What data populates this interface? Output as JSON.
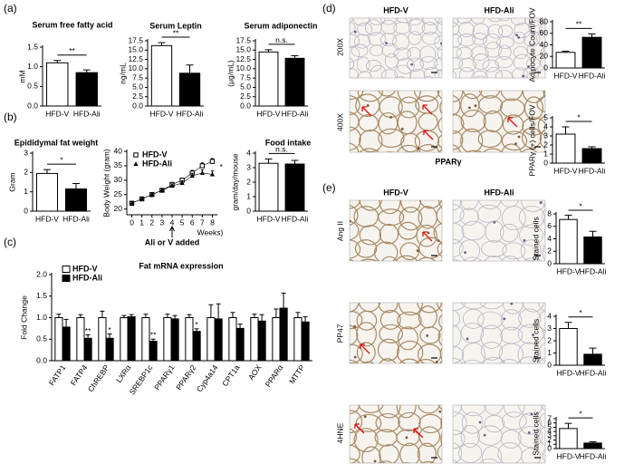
{
  "panel_labels": [
    "(a)",
    "(b)",
    "(c)",
    "(d)",
    "(e)"
  ],
  "micrographs": {
    "d": {
      "columns": [
        "HFD-V",
        "HFD-Ali"
      ],
      "rows": [
        "200X",
        "400X"
      ],
      "caption": "PPARγ"
    },
    "e": {
      "columns": [
        "HFD-V",
        "HFD-Ali"
      ],
      "rows": [
        "Ang II",
        "PP47",
        "4HNE"
      ]
    }
  },
  "chart_data": [
    {
      "type": "bar",
      "title": "Serum free fatty acid",
      "ylabel": "mM",
      "categories": [
        "HFD-V",
        "HFD-Ali"
      ],
      "values": [
        1.1,
        0.85
      ],
      "errors": [
        0.06,
        0.07
      ],
      "colors": [
        "#ffffff",
        "#000000"
      ],
      "significance": "**",
      "ylim": [
        0,
        1.5
      ],
      "yticks": [
        {
          "value": 0,
          "label": "0.0"
        },
        0.5,
        {
          "value": 1,
          "label": "1.0"
        },
        1.5
      ]
    },
    {
      "type": "bar",
      "title": "Serum Leptin",
      "ylabel": "ng/mL",
      "categories": [
        "HFD-V",
        "HFD-Ali"
      ],
      "values": [
        16.2,
        8.8
      ],
      "errors": [
        0.8,
        2.2
      ],
      "colors": [
        "#ffffff",
        "#000000"
      ],
      "significance": "**",
      "ylim": [
        0,
        17.5
      ],
      "yticks": [
        {
          "value": 0,
          "label": "0.0"
        },
        2.5,
        {
          "value": 5,
          "label": "5.0"
        },
        7.5,
        {
          "value": 10,
          "label": "10.0"
        },
        12.5,
        {
          "value": 15,
          "label": "15.0"
        },
        17.5
      ]
    },
    {
      "type": "bar",
      "title": "Serum adiponectin",
      "ylabel": "(μg/mL)",
      "categories": [
        "HFD-V",
        "HFD-Ali"
      ],
      "values": [
        14.5,
        12.8
      ],
      "errors": [
        0.6,
        0.7
      ],
      "colors": [
        "#ffffff",
        "#000000"
      ],
      "significance": "n.s.",
      "ylim": [
        0,
        17.5
      ],
      "yticks": [
        {
          "value": 0,
          "label": "0.0"
        },
        2.5,
        {
          "value": 5,
          "label": "5.0"
        },
        7.5,
        {
          "value": 10,
          "label": "10.0"
        },
        12.5,
        {
          "value": 15,
          "label": "15.0"
        },
        17.5
      ]
    },
    {
      "type": "bar",
      "title": "Epididymal fat weight",
      "ylabel": "Gram",
      "categories": [
        "HFD-V",
        "HFD-Ali"
      ],
      "values": [
        1.95,
        1.15
      ],
      "errors": [
        0.2,
        0.28
      ],
      "colors": [
        "#ffffff",
        "#000000"
      ],
      "significance": "*",
      "ylim": [
        0,
        3
      ],
      "yticks": [
        0,
        1,
        2,
        3
      ]
    },
    {
      "type": "line",
      "ylabel": "Body Weight (gram)",
      "xlabel": "Weeks)",
      "x": [
        0,
        1,
        2,
        3,
        4,
        5,
        6,
        7,
        8
      ],
      "series": [
        {
          "name": "HFD-V",
          "color": "#000000",
          "marker": "open-square",
          "values": [
            22,
            23.5,
            25,
            26.5,
            28.5,
            30,
            32.5,
            35,
            36.5
          ],
          "errors": [
            0.6,
            0.5,
            0.5,
            0.6,
            0.7,
            0.7,
            0.9,
            1.0,
            1.0
          ]
        },
        {
          "name": "HFD-Ali",
          "color": "#000000",
          "marker": "filled-triangle",
          "values": [
            22,
            23.5,
            25,
            26.5,
            28,
            29,
            31.5,
            32.5,
            32
          ],
          "errors": [
            0.5,
            0.5,
            0.5,
            0.6,
            0.7,
            0.8,
            0.9,
            1.1,
            1.2
          ]
        }
      ],
      "annotation": {
        "text": "Ali or V added",
        "x": 4
      },
      "significance": {
        "text": "*",
        "x": 8,
        "y": 34.5
      },
      "xlim": [
        -0.5,
        8.5
      ],
      "xticks": [
        0,
        1,
        2,
        3,
        4,
        5,
        6,
        7,
        8
      ],
      "ylim": [
        18,
        40
      ],
      "yticks": [
        20,
        25,
        30,
        35,
        40
      ],
      "legend": "upper-left"
    },
    {
      "type": "bar",
      "title": "Food intake",
      "ylabel": "gram/day/mouse",
      "categories": [
        "HFD-V",
        "HFD-Ali"
      ],
      "values": [
        3.3,
        3.25
      ],
      "errors": [
        0.3,
        0.25
      ],
      "colors": [
        "#ffffff",
        "#000000"
      ],
      "significance": "n.s.",
      "ylim": [
        0,
        4
      ],
      "yticks": [
        0,
        1,
        2,
        3,
        4
      ]
    },
    {
      "type": "grouped_bar",
      "title": "Fat mRNA expression",
      "ylabel": "Fold Change",
      "categories": [
        "FATP1",
        "FATP4",
        "ChREBP",
        "LXRα",
        "SREBP1c",
        "PPARγ1",
        "PPARγ2",
        "Cyp4a14",
        "CPT1a",
        "AOX",
        "PPARα",
        "MTTP"
      ],
      "series": [
        {
          "name": "HFD-V",
          "color": "#ffffff",
          "values": [
            1,
            1,
            1,
            1,
            1,
            1,
            1,
            1,
            1,
            1,
            1,
            1
          ],
          "errors": [
            0.08,
            0.07,
            0.15,
            0.05,
            0.08,
            0.08,
            0.07,
            0.3,
            0.12,
            0.08,
            0.2,
            0.12
          ],
          "significance": [
            null,
            null,
            null,
            null,
            null,
            null,
            null,
            null,
            null,
            null,
            null,
            null
          ]
        },
        {
          "name": "HFD-Ali",
          "color": "#000000",
          "values": [
            0.78,
            0.52,
            0.52,
            1.02,
            0.45,
            0.97,
            0.68,
            0.97,
            0.75,
            0.92,
            1.22,
            0.9
          ],
          "errors": [
            0.18,
            0.08,
            0.1,
            0.05,
            0.05,
            0.08,
            0.06,
            0.35,
            0.1,
            0.15,
            0.35,
            0.12
          ],
          "significance": [
            null,
            "**",
            "*",
            null,
            "**",
            null,
            "*",
            null,
            null,
            null,
            null,
            null
          ]
        }
      ],
      "ylim": [
        0,
        2
      ],
      "yticks": [
        {
          "value": 0,
          "label": "0.0"
        },
        0.5,
        {
          "value": 1,
          "label": "1.0"
        },
        1.5,
        {
          "value": 2,
          "label": "2.0"
        }
      ],
      "legend": "upper-left"
    },
    {
      "type": "bar",
      "ylabel": "Adipocyte Count/FOV",
      "categories": [
        "HFD-V",
        "HFD-Ali"
      ],
      "values": [
        27,
        53
      ],
      "errors": [
        2,
        6
      ],
      "colors": [
        "#ffffff",
        "#000000"
      ],
      "significance": "**",
      "ylim": [
        0,
        80
      ],
      "yticks": [
        0,
        20,
        40,
        60,
        80
      ]
    },
    {
      "type": "bar",
      "ylabel": "PPARγ (+) cells/FOV",
      "categories": [
        "HFD-V",
        "HFD-Ali"
      ],
      "values": [
        3.2,
        1.6
      ],
      "errors": [
        0.8,
        0.2
      ],
      "colors": [
        "#ffffff",
        "#000000"
      ],
      "significance": "*",
      "ylim": [
        0,
        5
      ],
      "yticks": [
        0,
        1,
        2,
        3,
        4,
        5
      ]
    },
    {
      "type": "bar",
      "ylabel": "Stained cells",
      "categories": [
        "HFD-V",
        "HFD-Ali"
      ],
      "values": [
        7.1,
        4.3
      ],
      "errors": [
        0.7,
        0.9
      ],
      "colors": [
        "#ffffff",
        "#000000"
      ],
      "significance": "*",
      "ylim": [
        0,
        8
      ],
      "yticks": [
        0,
        2,
        4,
        6,
        8
      ]
    },
    {
      "type": "bar",
      "ylabel": "Stained cells",
      "categories": [
        "HFD-V",
        "HFD-Ali"
      ],
      "values": [
        3.0,
        0.9
      ],
      "errors": [
        0.5,
        0.5
      ],
      "colors": [
        "#ffffff",
        "#000000"
      ],
      "significance": "*",
      "ylim": [
        0,
        4
      ],
      "yticks": [
        0,
        1,
        2,
        3,
        4
      ]
    },
    {
      "type": "bar",
      "ylabel": "Stained cells",
      "categories": [
        "HFD-V",
        "HFD-Ali"
      ],
      "values": [
        4.7,
        1.3
      ],
      "errors": [
        1.2,
        0.3
      ],
      "colors": [
        "#ffffff",
        "#000000"
      ],
      "significance": "*",
      "ylim": [
        0,
        7
      ],
      "yticks": [
        0,
        1,
        2,
        3,
        4,
        5,
        6,
        7
      ]
    }
  ]
}
